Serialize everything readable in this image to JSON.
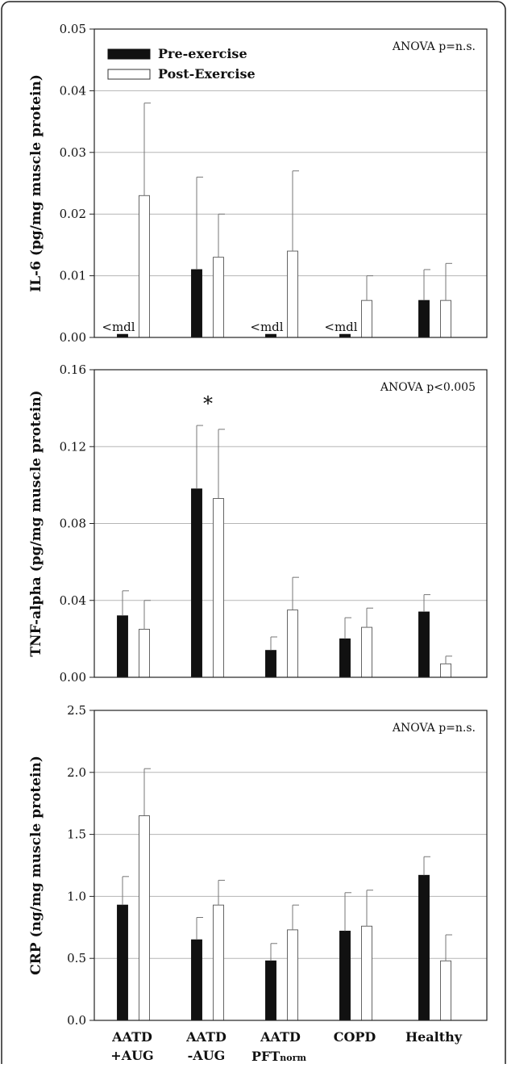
{
  "chart_data": [
    {
      "type": "bar",
      "categories": [
        "AATD +AUG",
        "AATD -AUG",
        "AATD PFTnorm",
        "COPD",
        "Healthy"
      ],
      "ylabel": "IL-6 (pg/mg muscle protein)",
      "ylim": [
        0,
        0.05
      ],
      "yticks": [
        "0.00",
        "0.01",
        "0.02",
        "0.03",
        "0.04",
        "0.05"
      ],
      "grid": true,
      "annotation": "ANOVA p=n.s.",
      "below_detection_label": "<mdl",
      "legend": {
        "placement": "top-left",
        "entries": [
          "Pre-exercise",
          "Post-Exercise"
        ]
      },
      "series": [
        {
          "name": "Pre-exercise",
          "color": "#111111",
          "values": [
            0.0005,
            0.011,
            0.0005,
            0.0005,
            0.006
          ],
          "errors": [
            0,
            0.015,
            0,
            0,
            0.005
          ],
          "below_mdl": [
            true,
            false,
            true,
            true,
            false
          ]
        },
        {
          "name": "Post-Exercise",
          "color": "#ffffff",
          "values": [
            0.023,
            0.013,
            0.014,
            0.006,
            0.006
          ],
          "errors": [
            0.015,
            0.007,
            0.013,
            0.004,
            0.006
          ],
          "below_mdl": [
            false,
            false,
            false,
            false,
            false
          ]
        }
      ]
    },
    {
      "type": "bar",
      "categories": [
        "AATD +AUG",
        "AATD -AUG",
        "AATD PFTnorm",
        "COPD",
        "Healthy"
      ],
      "ylabel": "TNF-alpha (pg/mg muscle protein)",
      "ylim": [
        0,
        0.16
      ],
      "yticks": [
        "0.00",
        "0.04",
        "0.08",
        "0.12",
        "0.16"
      ],
      "grid": true,
      "annotation": "ANOVA p<0.005",
      "significance": {
        "category_index": 1,
        "label": "*"
      },
      "series": [
        {
          "name": "Pre-exercise",
          "color": "#111111",
          "values": [
            0.032,
            0.098,
            0.014,
            0.02,
            0.034
          ],
          "errors": [
            0.013,
            0.033,
            0.007,
            0.011,
            0.009
          ]
        },
        {
          "name": "Post-Exercise",
          "color": "#ffffff",
          "values": [
            0.025,
            0.093,
            0.035,
            0.026,
            0.007
          ],
          "errors": [
            0.015,
            0.036,
            0.017,
            0.01,
            0.004
          ]
        }
      ]
    },
    {
      "type": "bar",
      "categories": [
        "AATD +AUG",
        "AATD -AUG",
        "AATD PFTnorm",
        "COPD",
        "Healthy"
      ],
      "ylabel": "CRP (ng/mg muscle protein)",
      "ylim": [
        0,
        2.5
      ],
      "yticks": [
        "0.0",
        "0.5",
        "1.0",
        "1.5",
        "2.0",
        "2.5"
      ],
      "grid": true,
      "annotation": "ANOVA p=n.s.",
      "series": [
        {
          "name": "Pre-exercise",
          "color": "#111111",
          "values": [
            0.93,
            0.65,
            0.48,
            0.72,
            1.17
          ],
          "errors": [
            0.23,
            0.18,
            0.14,
            0.31,
            0.15
          ]
        },
        {
          "name": "Post-Exercise",
          "color": "#ffffff",
          "values": [
            1.65,
            0.93,
            0.73,
            0.76,
            0.48
          ],
          "errors": [
            0.38,
            0.2,
            0.2,
            0.29,
            0.21
          ]
        }
      ]
    }
  ],
  "x_axis_labels": [
    {
      "line1": "AATD",
      "line2": "+AUG",
      "sub": ""
    },
    {
      "line1": "AATD",
      "line2": "-AUG",
      "sub": ""
    },
    {
      "line1": "AATD",
      "line2": "PFT",
      "sub": "norm"
    },
    {
      "line1": "COPD",
      "line2": "",
      "sub": ""
    },
    {
      "line1": "Healthy",
      "line2": "",
      "sub": ""
    }
  ]
}
